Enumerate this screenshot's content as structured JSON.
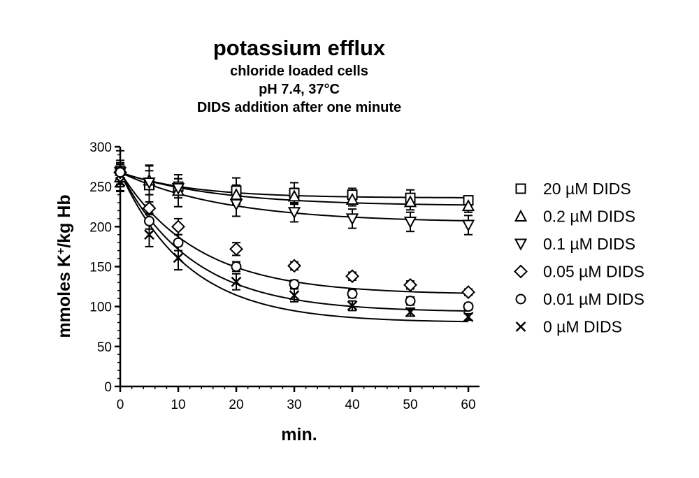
{
  "chart_data": {
    "type": "scatter",
    "title": "potassium efflux",
    "subtitle_lines": [
      "chloride loaded cells",
      "pH 7.4, 37°C",
      "DIDS addition after one minute"
    ],
    "xlabel": "min.",
    "ylabel_main": "mmoles K",
    "ylabel_sup": "+",
    "ylabel_tail": "/kg Hb",
    "xlim": [
      0,
      60
    ],
    "ylim": [
      0,
      300
    ],
    "xticks": [
      0,
      10,
      20,
      30,
      40,
      50,
      60
    ],
    "yticks": [
      0,
      50,
      100,
      150,
      200,
      250,
      300
    ],
    "legend_position": "right",
    "grid": false,
    "has_fitted_curves": true,
    "has_error_bars": true,
    "x": [
      0,
      5,
      10,
      20,
      30,
      40,
      50,
      60
    ],
    "series": [
      {
        "name": "20 µM DIDS",
        "marker": "square",
        "values": [
          270,
          252,
          250,
          245,
          242,
          240,
          236,
          233
        ],
        "errors": [
          25,
          25,
          10,
          16,
          13,
          8,
          10,
          5
        ]
      },
      {
        "name": "0.2 µM DIDS",
        "marker": "triangle-up",
        "values": [
          262,
          258,
          245,
          240,
          238,
          234,
          231,
          226
        ],
        "errors": [
          12,
          18,
          20,
          12,
          10,
          8,
          10,
          8
        ]
      },
      {
        "name": "0.1 µM DIDS",
        "marker": "triangle-down",
        "values": [
          268,
          255,
          248,
          228,
          218,
          210,
          206,
          202
        ],
        "errors": [
          10,
          15,
          12,
          15,
          12,
          12,
          12,
          12
        ]
      },
      {
        "name": "0.05 µM DIDS",
        "marker": "diamond",
        "values": [
          268,
          223,
          200,
          172,
          151,
          138,
          127,
          118
        ],
        "errors": [
          12,
          8,
          10,
          8,
          5,
          5,
          5,
          4
        ]
      },
      {
        "name": "0.01 µM DIDS",
        "marker": "circle",
        "values": [
          268,
          207,
          180,
          150,
          128,
          116,
          107,
          100
        ],
        "errors": [
          15,
          10,
          10,
          6,
          5,
          5,
          5,
          4
        ]
      },
      {
        "name": "0 µM DIDS",
        "marker": "x",
        "values": [
          256,
          190,
          161,
          131,
          114,
          101,
          93,
          87
        ],
        "errors": [
          12,
          15,
          15,
          10,
          8,
          6,
          5,
          4
        ]
      }
    ],
    "fit_curves": [
      {
        "series": "20 µM DIDS",
        "start": 268,
        "plateau": 236,
        "k": 0.08
      },
      {
        "series": "0.2 µM DIDS",
        "start": 268,
        "plateau": 226,
        "k": 0.06
      },
      {
        "series": "0.1 µM DIDS",
        "start": 268,
        "plateau": 205,
        "k": 0.055
      },
      {
        "series": "0.05 µM DIDS",
        "start": 268,
        "plateau": 115,
        "k": 0.075
      },
      {
        "series": "0.01 µM DIDS",
        "start": 268,
        "plateau": 93,
        "k": 0.08
      },
      {
        "series": "0 µM DIDS",
        "start": 268,
        "plateau": 80,
        "k": 0.085
      }
    ]
  }
}
